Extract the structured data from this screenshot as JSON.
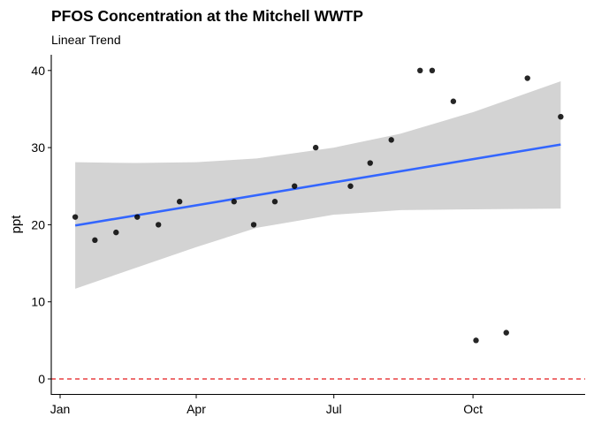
{
  "chart_data": {
    "type": "scatter",
    "title": "PFOS Concentration at the Mitchell WWTP",
    "subtitle": "Linear Trend",
    "xlabel": "",
    "ylabel": "ppt",
    "x_units": "day of year",
    "xlim": [
      -6,
      347
    ],
    "ylim": [
      -2,
      42
    ],
    "grid": false,
    "x_ticks": [
      {
        "value": 0,
        "label": "Jan"
      },
      {
        "value": 90,
        "label": "Apr"
      },
      {
        "value": 181,
        "label": "Jul"
      },
      {
        "value": 273,
        "label": "Oct"
      }
    ],
    "y_ticks": [
      {
        "value": 0,
        "label": "0"
      },
      {
        "value": 10,
        "label": "10"
      },
      {
        "value": 20,
        "label": "20"
      },
      {
        "value": 30,
        "label": "30"
      },
      {
        "value": 40,
        "label": "40"
      }
    ],
    "points": [
      {
        "x": 10,
        "y": 21
      },
      {
        "x": 23,
        "y": 18
      },
      {
        "x": 37,
        "y": 19
      },
      {
        "x": 51,
        "y": 21
      },
      {
        "x": 65,
        "y": 20
      },
      {
        "x": 79,
        "y": 23
      },
      {
        "x": 115,
        "y": 23
      },
      {
        "x": 128,
        "y": 20
      },
      {
        "x": 142,
        "y": 23
      },
      {
        "x": 155,
        "y": 25
      },
      {
        "x": 169,
        "y": 30
      },
      {
        "x": 192,
        "y": 25
      },
      {
        "x": 205,
        "y": 28
      },
      {
        "x": 219,
        "y": 31
      },
      {
        "x": 238,
        "y": 40
      },
      {
        "x": 246,
        "y": 40
      },
      {
        "x": 260,
        "y": 36
      },
      {
        "x": 275,
        "y": 5
      },
      {
        "x": 295,
        "y": 6
      },
      {
        "x": 309,
        "y": 39
      },
      {
        "x": 331,
        "y": 34
      }
    ],
    "trend": {
      "x": [
        10,
        331
      ],
      "y": [
        19.9,
        30.4
      ],
      "color": "#3366FF"
    },
    "ci_band": {
      "x": [
        10,
        50,
        90,
        130,
        181,
        225,
        273,
        331
      ],
      "lower": [
        11.7,
        14.4,
        17.1,
        19.6,
        21.3,
        21.9,
        22.0,
        22.1
      ],
      "upper": [
        28.1,
        28.0,
        28.1,
        28.6,
        30.0,
        31.8,
        34.6,
        38.6
      ],
      "color": "#D3D3D3"
    },
    "reference_line": {
      "y": 0,
      "style": "dashed",
      "color": "#E41A1C"
    },
    "point_color": "#000000"
  }
}
